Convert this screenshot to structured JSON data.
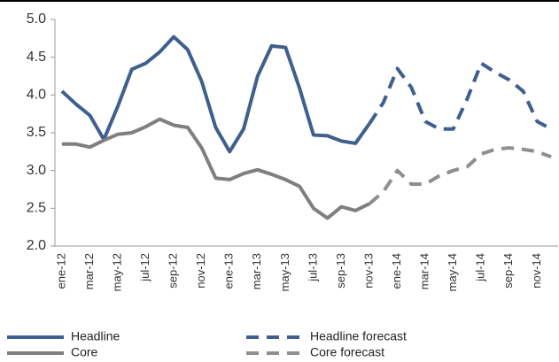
{
  "chart_data": {
    "type": "line",
    "categories": [
      "ene-12",
      null,
      "mar-12",
      null,
      "may-12",
      null,
      "jul-12",
      null,
      "sep-12",
      null,
      "nov-12",
      null,
      "ene-13",
      null,
      "mar-13",
      null,
      "may-13",
      null,
      "jul-13",
      null,
      "sep-13",
      null,
      "nov-13",
      null,
      "ene-14",
      null,
      "mar-14",
      null,
      "may-14",
      null,
      "jul-14",
      null,
      "sep-14",
      null,
      "nov-14",
      null
    ],
    "series": [
      {
        "name": "Headline",
        "color": "#3f5f8f",
        "dashed": false,
        "values": [
          4.05,
          3.88,
          3.73,
          3.41,
          3.85,
          4.34,
          4.42,
          4.57,
          4.77,
          4.6,
          4.18,
          3.57,
          3.25,
          3.55,
          4.25,
          4.65,
          4.63,
          4.09,
          3.47,
          3.46,
          3.39,
          3.36,
          3.62,
          null,
          null,
          null,
          null,
          null,
          null,
          null,
          null,
          null,
          null,
          null,
          null,
          null
        ]
      },
      {
        "name": "Core",
        "color": "#7f7f7f",
        "dashed": false,
        "values": [
          3.35,
          3.35,
          3.31,
          3.4,
          3.48,
          3.5,
          3.58,
          3.68,
          3.6,
          3.57,
          3.3,
          2.9,
          2.88,
          2.96,
          3.01,
          2.95,
          2.88,
          2.79,
          2.5,
          2.37,
          2.52,
          2.47,
          2.56,
          null,
          null,
          null,
          null,
          null,
          null,
          null,
          null,
          null,
          null,
          null,
          null,
          null
        ]
      },
      {
        "name": "Headline forecast",
        "color": "#3f5f8f",
        "dashed": true,
        "values": [
          null,
          null,
          null,
          null,
          null,
          null,
          null,
          null,
          null,
          null,
          null,
          null,
          null,
          null,
          null,
          null,
          null,
          null,
          null,
          null,
          null,
          null,
          3.62,
          3.9,
          4.35,
          4.1,
          3.65,
          3.55,
          3.55,
          3.95,
          4.42,
          4.3,
          4.2,
          4.05,
          3.65,
          3.55
        ]
      },
      {
        "name": "Core forecast",
        "color": "#8f8f8f",
        "dashed": true,
        "values": [
          null,
          null,
          null,
          null,
          null,
          null,
          null,
          null,
          null,
          null,
          null,
          null,
          null,
          null,
          null,
          null,
          null,
          null,
          null,
          null,
          null,
          null,
          2.56,
          2.72,
          3.0,
          2.82,
          2.82,
          2.93,
          3.0,
          3.05,
          3.22,
          3.28,
          3.3,
          3.28,
          3.25,
          3.18
        ]
      }
    ],
    "ylim": [
      2.0,
      5.0
    ],
    "yticks": [
      {
        "value": 2.0,
        "label": "2.0"
      },
      {
        "value": 2.5,
        "label": "2.5"
      },
      {
        "value": 3.0,
        "label": "3.0"
      },
      {
        "value": 3.5,
        "label": "3.5"
      },
      {
        "value": 4.0,
        "label": "4.0"
      },
      {
        "value": 4.5,
        "label": "4.5"
      },
      {
        "value": 5.0,
        "label": "5.0"
      }
    ]
  }
}
